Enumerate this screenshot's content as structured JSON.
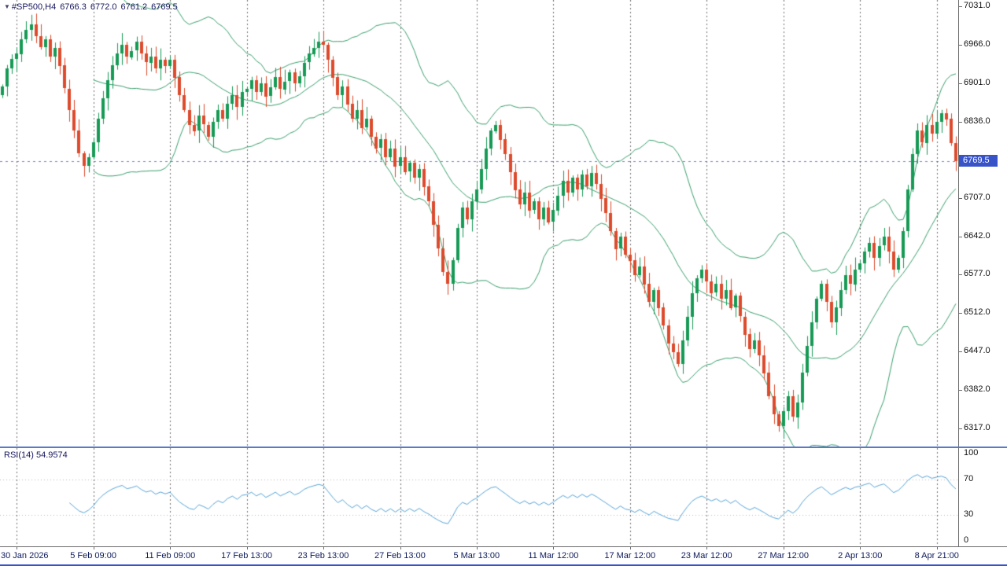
{
  "header": {
    "marker": "▼",
    "symbol": "#SP500,H4",
    "open": "6766.3",
    "high": "6772.0",
    "low": "6761.2",
    "close": "6769.5"
  },
  "colors": {
    "candle_up": "#169a55",
    "candle_down": "#dd4a2c",
    "bollinger": "#3aa06d",
    "rsi_line": "#57a5d9",
    "rsi_levels": "#bcbcbc",
    "separator": "#6e6e6e",
    "price_line": "#3853c8",
    "badge_bg": "#3853c8",
    "badge_text": "#ffffff",
    "price_text": "#111111",
    "date_text": "#0d1a5a",
    "header_text": "#16165e",
    "background": "#ffffff"
  },
  "chart_data": {
    "type": "candlestick",
    "title": "#SP500,H4",
    "symbol": "#SP500",
    "timeframe": "H4",
    "current_bar_ohlc": {
      "open": 6766.3,
      "high": 6772.0,
      "low": 6761.2,
      "close": 6769.5
    },
    "x_labels": [
      "30 Jan 2026",
      "5 Feb 09:00",
      "11 Feb 09:00",
      "17 Feb 13:00",
      "23 Feb 13:00",
      "27 Feb 13:00",
      "5 Mar 13:00",
      "11 Mar 12:00",
      "17 Mar 12:00",
      "23 Mar 12:00",
      "27 Mar 12:00",
      "2 Apr 13:00",
      "8 Apr 21:00"
    ],
    "first_label_index": 3,
    "bars_per_label": 16,
    "y_axis": {
      "price_min": 6286,
      "price_max": 7042,
      "current_price": 6769.5,
      "current_price_label": "6769.5",
      "ticks": [
        "7031.0",
        "6966.0",
        "6901.0",
        "6836.0",
        "6707.0",
        "6642.0",
        "6577.0",
        "6512.0",
        "6447.0",
        "6382.0",
        "6317.0"
      ]
    },
    "first_open": 6880,
    "closes": [
      6895,
      6926,
      6942,
      6951,
      6976,
      6992,
      7001,
      6981,
      6963,
      6976,
      6947,
      6961,
      6931,
      6892,
      6856,
      6821,
      6782,
      6761,
      6776,
      6801,
      6841,
      6876,
      6906,
      6931,
      6951,
      6966,
      6946,
      6956,
      6971,
      6951,
      6936,
      6946,
      6926,
      6941,
      6931,
      6941,
      6911,
      6881,
      6856,
      6831,
      6821,
      6846,
      6831,
      6811,
      6836,
      6856,
      6841,
      6866,
      6881,
      6861,
      6886,
      6891,
      6906,
      6886,
      6901,
      6879,
      6894,
      6911,
      6891,
      6904,
      6919,
      6901,
      6913,
      6936,
      6951,
      6961,
      6971,
      6966,
      6941,
      6911,
      6881,
      6896,
      6866,
      6841,
      6856,
      6826,
      6841,
      6811,
      6791,
      6806,
      6776,
      6791,
      6761,
      6776,
      6751,
      6766,
      6741,
      6756,
      6726,
      6701,
      6661,
      6621,
      6581,
      6561,
      6601,
      6656,
      6691,
      6671,
      6701,
      6721,
      6756,
      6791,
      6821,
      6831,
      6806,
      6781,
      6751,
      6721,
      6696,
      6716,
      6686,
      6701,
      6671,
      6691,
      6666,
      6686,
      6711,
      6736,
      6716,
      6741,
      6721,
      6746,
      6726,
      6749,
      6731,
      6706,
      6681,
      6651,
      6621,
      6641,
      6611,
      6601,
      6576,
      6591,
      6561,
      6531,
      6551,
      6521,
      6491,
      6461,
      6446,
      6426,
      6466,
      6506,
      6546,
      6571,
      6586,
      6566,
      6546,
      6561,
      6536,
      6551,
      6521,
      6541,
      6506,
      6476,
      6451,
      6466,
      6441,
      6411,
      6371,
      6341,
      6321,
      6346,
      6371,
      6336,
      6361,
      6411,
      6456,
      6496,
      6536,
      6561,
      6531,
      6496,
      6521,
      6551,
      6576,
      6561,
      6586,
      6596,
      6616,
      6631,
      6606,
      6626,
      6641,
      6616,
      6586,
      6606,
      6651,
      6721,
      6781,
      6821,
      6801,
      6831,
      6816,
      6836,
      6851,
      6841,
      6800,
      6769.5
    ],
    "indicators": {
      "bollinger": {
        "name": "Bollinger Bands",
        "period": 20,
        "deviation": 2
      },
      "rsi": {
        "label": "RSI(14) 54.9574",
        "name": "RSI",
        "period": 14,
        "current": 54.9574,
        "scale_ticks": [
          "100",
          "70",
          "30",
          "0"
        ],
        "levels": [
          70,
          30
        ],
        "scale_min": 0,
        "scale_max": 100
      }
    }
  }
}
